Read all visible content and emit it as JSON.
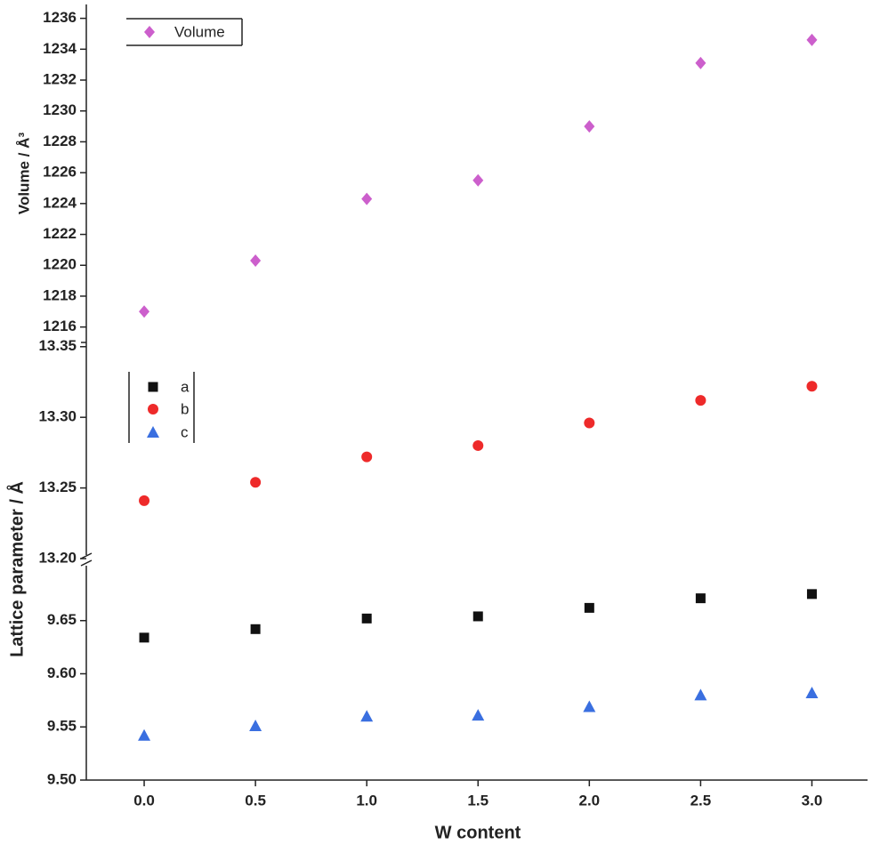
{
  "chart_data": [
    {
      "type": "scatter",
      "ylabel": "Volume / Å³",
      "x": [
        0,
        0.5,
        1,
        1.5,
        2,
        2.5,
        3
      ],
      "ylim": [
        1215,
        1236.9
      ],
      "yticks": [
        1216,
        1218,
        1220,
        1222,
        1224,
        1226,
        1228,
        1230,
        1232,
        1234,
        1236
      ],
      "series": [
        {
          "name": "Volume",
          "color": "#cc5fcc",
          "marker": "diamond",
          "values": [
            1217.0,
            1220.3,
            1224.3,
            1225.5,
            1229.0,
            1233.1,
            1234.6
          ]
        }
      ]
    },
    {
      "type": "scatter",
      "x": [
        0,
        0.5,
        1,
        1.5,
        2,
        2.5,
        3
      ],
      "ylim": [
        13.2,
        13.353
      ],
      "yticks": [
        {
          "value": 13.2,
          "label": "13.20"
        },
        13.25,
        {
          "value": 13.3,
          "label": "13.30"
        },
        13.35
      ],
      "series": [
        {
          "name": "b",
          "color": "#ee2a2a",
          "marker": "circle",
          "values": [
            13.241,
            13.254,
            13.272,
            13.28,
            13.296,
            13.312,
            13.322
          ]
        }
      ]
    },
    {
      "type": "scatter",
      "ylabel": "Lattice parameter / Å",
      "xlabel": "W content",
      "x": [
        0,
        0.5,
        1,
        1.5,
        2,
        2.5,
        3
      ],
      "xlim": [
        -0.26,
        3.25
      ],
      "xticks": [
        {
          "value": 0,
          "label": "0.0"
        },
        0.5,
        {
          "value": 1,
          "label": "1.0"
        },
        1.5,
        {
          "value": 2,
          "label": "2.0"
        },
        2.5,
        {
          "value": 3,
          "label": "3.0"
        }
      ],
      "ylim": [
        9.5,
        9.705
      ],
      "yticks": [
        {
          "value": 9.5,
          "label": "9.50"
        },
        9.55,
        {
          "value": 9.6,
          "label": "9.60"
        },
        9.65
      ],
      "series": [
        {
          "name": "a",
          "color": "#111111",
          "marker": "square",
          "values": [
            9.634,
            9.642,
            9.652,
            9.654,
            9.662,
            9.671,
            9.675
          ]
        },
        {
          "name": "c",
          "color": "#3a6fe0",
          "marker": "triangle",
          "values": [
            9.542,
            9.551,
            9.56,
            9.561,
            9.569,
            9.58,
            9.582
          ]
        }
      ]
    }
  ]
}
